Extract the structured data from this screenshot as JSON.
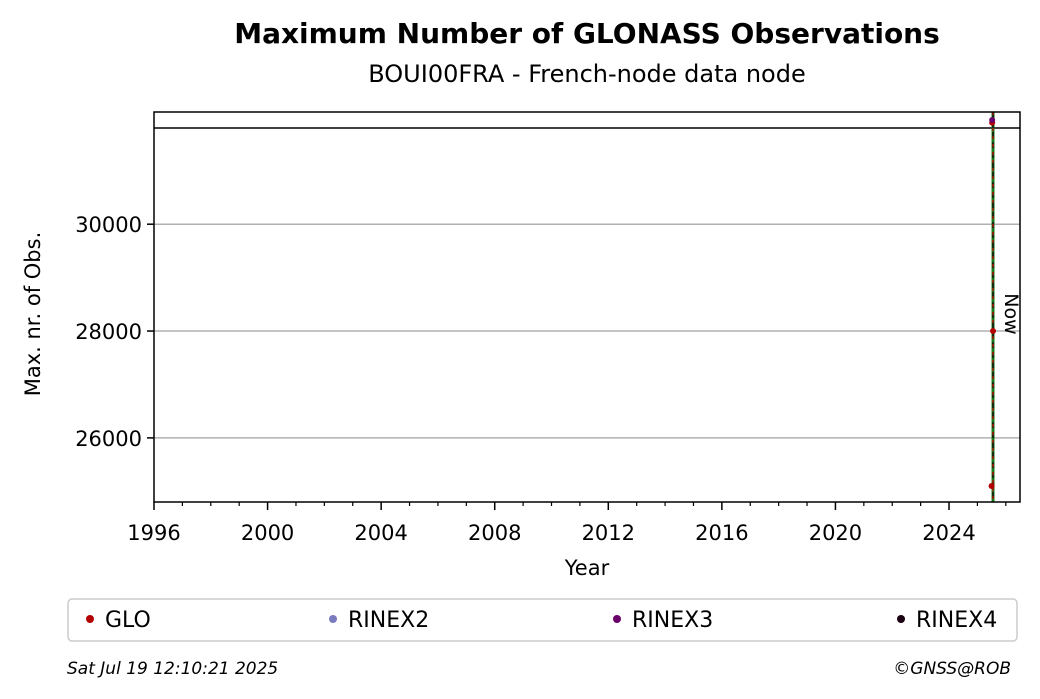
{
  "chart_data": {
    "type": "scatter",
    "title": "Maximum Number of GLONASS Observations",
    "subtitle": "BOUI00FRA - French-node data node",
    "xlabel": "Year",
    "ylabel": "Max. nr. of Obs.",
    "xlim": [
      1996,
      2026.5
    ],
    "ylim": [
      24800,
      32100
    ],
    "xticks": [
      1996,
      2000,
      2004,
      2008,
      2012,
      2016,
      2020,
      2024
    ],
    "yticks": [
      26000,
      28000,
      30000
    ],
    "grid": true,
    "now_x": 2025.55,
    "now_label": "Now",
    "reference_line_y": 31800,
    "legend_position": "bottom",
    "series": [
      {
        "name": "GLO",
        "color": "#b30000",
        "x": [
          2025.5,
          2025.52,
          2025.55
        ],
        "y": [
          25100,
          31900,
          28000
        ]
      },
      {
        "name": "RINEX2",
        "color": "#7b7bbf",
        "x": [],
        "y": []
      },
      {
        "name": "RINEX3",
        "color": "#6a006a",
        "x": [
          2025.52
        ],
        "y": [
          31950
        ]
      },
      {
        "name": "RINEX4",
        "color": "#1a0010",
        "x": [],
        "y": []
      }
    ]
  },
  "footer": {
    "timestamp": "Sat Jul 19 12:10:21 2025",
    "copyright": "©GNSS@ROB"
  }
}
